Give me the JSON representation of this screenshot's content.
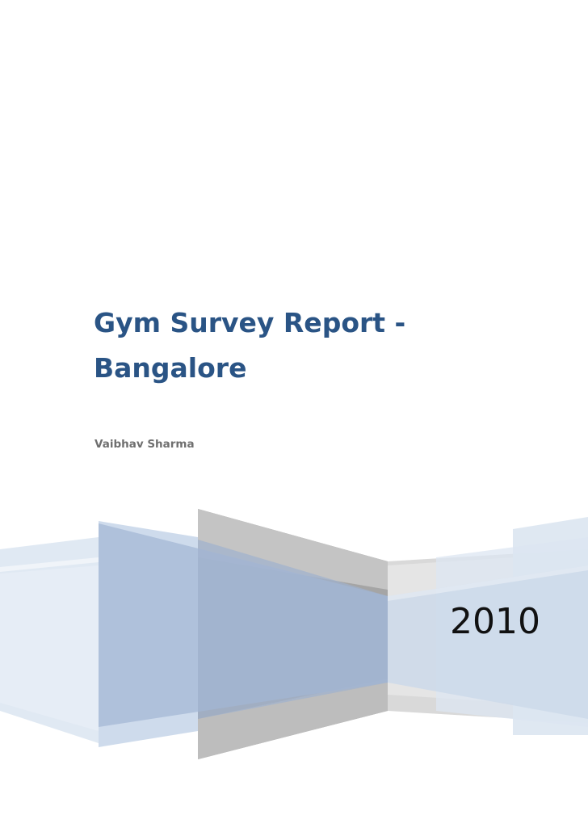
{
  "cover": {
    "title_line1": "Gym Survey Report -",
    "title_line2": "Bangalore",
    "author": "Vaibhav Sharma",
    "year": "2010"
  },
  "colors": {
    "title": "#2a5485",
    "author": "#6f6f6f",
    "year_text": "#111111",
    "light_blue": "#dce6f2",
    "mid_blue": "#a9bcd8",
    "gray": "#a6a6a6",
    "light_gray": "#d9d9d9"
  }
}
